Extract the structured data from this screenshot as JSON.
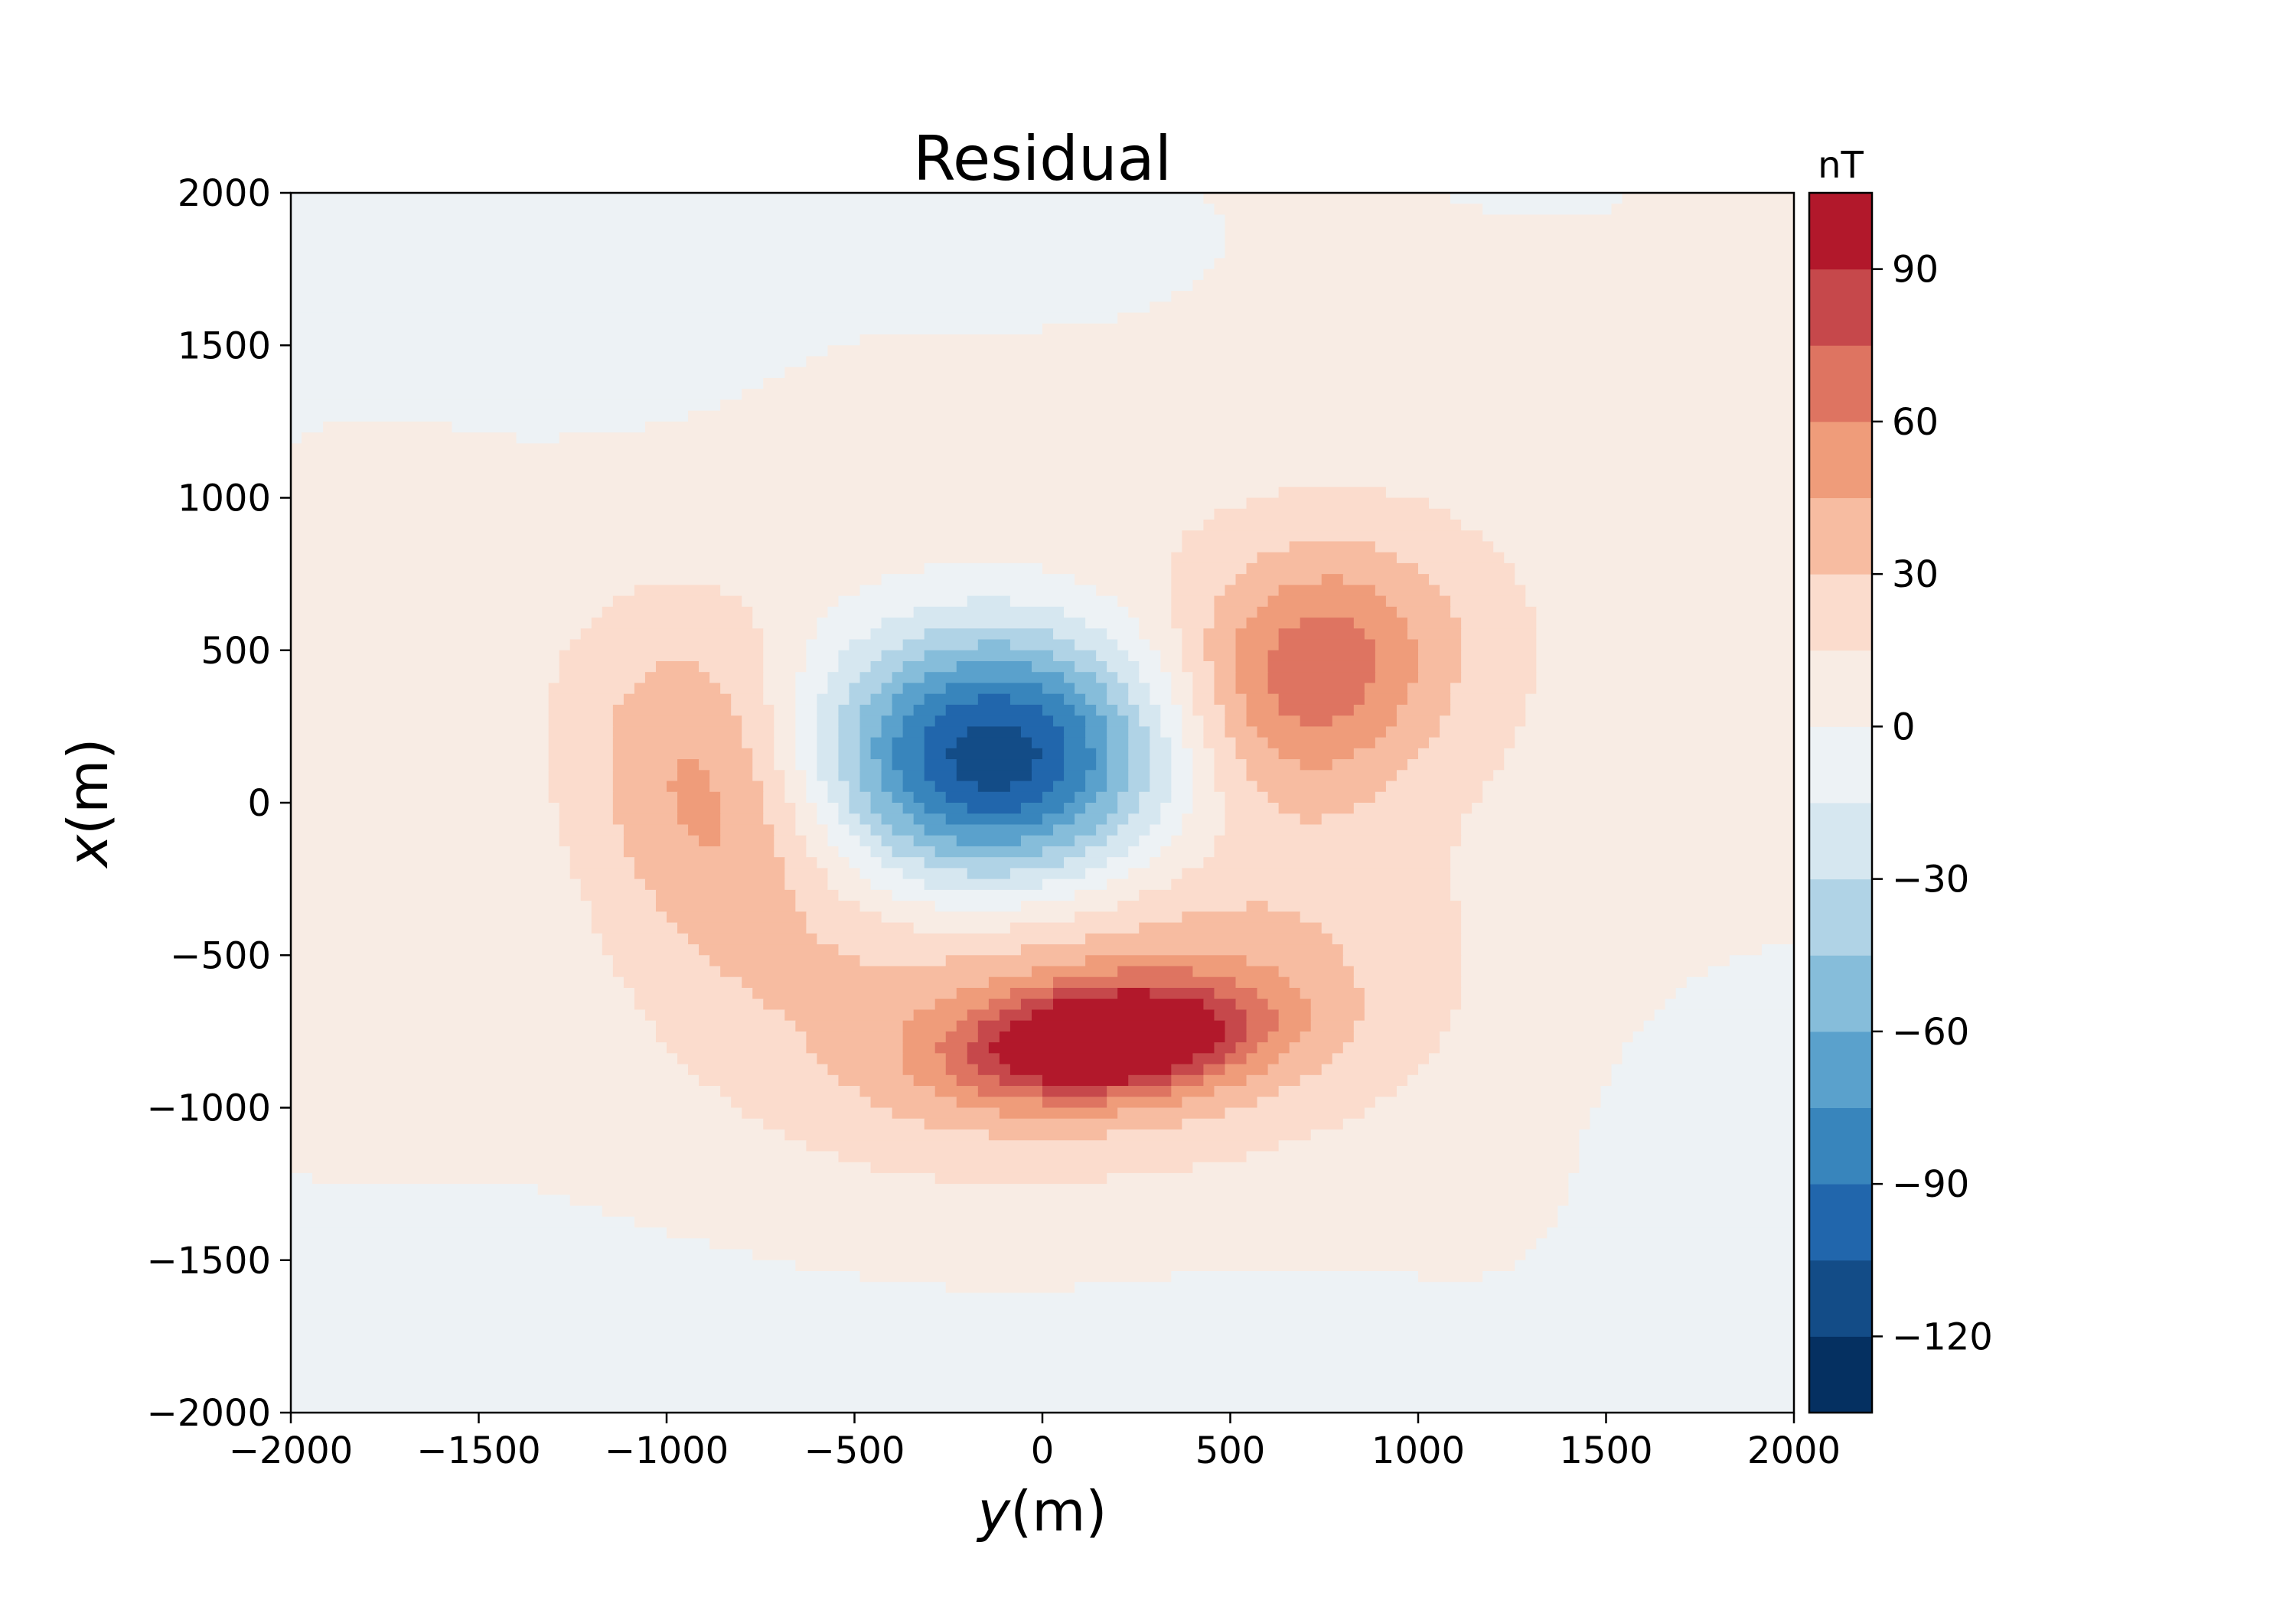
{
  "chart_data": {
    "type": "heatmap",
    "subtype": "filled-contour",
    "title": "Residual",
    "xlabel": {
      "var": "y",
      "unit": "(m)"
    },
    "ylabel": {
      "var": "x",
      "unit": "(m)"
    },
    "xlim": [
      -2000,
      2000
    ],
    "ylim": [
      -2000,
      2000
    ],
    "x_ticks": [
      -2000,
      -1500,
      -1000,
      -500,
      0,
      500,
      1000,
      1500,
      2000
    ],
    "y_ticks": [
      -2000,
      -1500,
      -1000,
      -500,
      0,
      500,
      1000,
      1500,
      2000
    ],
    "grid": false,
    "colorbar": {
      "label": "nT",
      "position": "right",
      "range": [
        -135,
        105
      ],
      "ticks": [
        -120,
        -90,
        -60,
        -30,
        0,
        30,
        60,
        90
      ],
      "levels": [
        -135,
        -120,
        -105,
        -90,
        -75,
        -60,
        -45,
        -30,
        -15,
        0,
        15,
        30,
        45,
        60,
        75,
        90,
        105
      ],
      "colors": [
        "#053061",
        "#134c87",
        "#2166ac",
        "#3885bc",
        "#5aa1cc",
        "#86bdda",
        "#b0d3e6",
        "#d6e7f0",
        "#edf2f5",
        "#f8ece4",
        "#fbdccd",
        "#f7bca1",
        "#ef9c7a",
        "#de7461",
        "#c6484b",
        "#b2182b"
      ]
    },
    "features": [
      {
        "name": "negative anomaly",
        "y": -120,
        "x": 150,
        "min": -130
      },
      {
        "name": "positive anomaly south",
        "y": 150,
        "x": -780,
        "max": 92
      },
      {
        "name": "positive lobe north-east",
        "y": 750,
        "x": 450,
        "max": 55
      },
      {
        "name": "positive lobe west",
        "y": -900,
        "x": 50,
        "max": 50
      }
    ]
  }
}
